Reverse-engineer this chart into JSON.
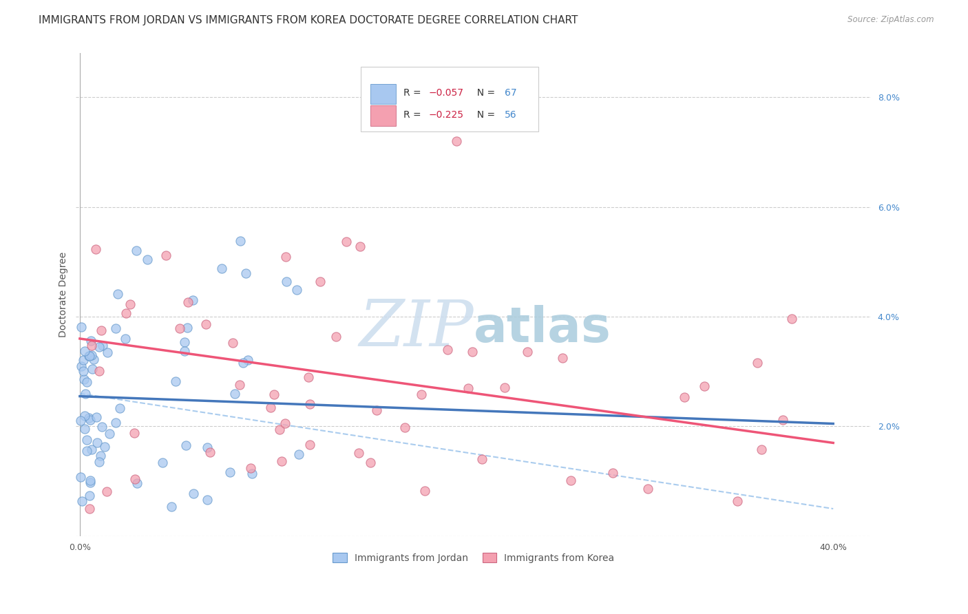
{
  "title": "IMMIGRANTS FROM JORDAN VS IMMIGRANTS FROM KOREA DOCTORATE DEGREE CORRELATION CHART",
  "source": "Source: ZipAtlas.com",
  "ylabel": "Doctorate Degree",
  "jordan_label": "Immigrants from Jordan",
  "korea_label": "Immigrants from Korea",
  "jordan_color": "#a8c8f0",
  "jordan_edge_color": "#6699cc",
  "korea_color": "#f4a0b0",
  "korea_edge_color": "#cc6680",
  "jordan_line_color": "#4477bb",
  "korea_line_color": "#ee5577",
  "trend_line_color": "#aaccee",
  "grid_color": "#cccccc",
  "background_color": "#ffffff",
  "watermark_color": "#cce8f4",
  "ylim": [
    0.0,
    0.088
  ],
  "xlim": [
    -0.002,
    0.42
  ],
  "y_ticks": [
    0.0,
    0.02,
    0.04,
    0.06,
    0.08
  ],
  "jordan_line_y_start": 0.0255,
  "jordan_line_y_end": 0.0205,
  "korea_line_y_start": 0.036,
  "korea_line_y_end": 0.017,
  "trend_line_y_start": 0.026,
  "trend_line_y_end": 0.005,
  "title_fontsize": 11,
  "tick_fontsize": 9,
  "axis_label_fontsize": 10
}
